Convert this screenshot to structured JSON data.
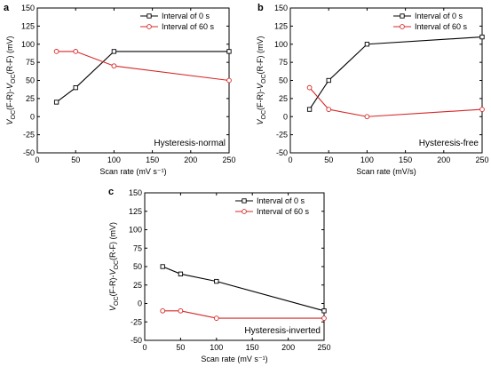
{
  "chart_data": [
    {
      "panel": "a",
      "type": "line",
      "xlabel": "Scan rate (mV s⁻¹)",
      "ylabel": "V_OC(F-R)-V_OC(R-F) (mV)",
      "annotation": "Hysteresis-normal",
      "xlim": [
        0,
        250
      ],
      "ylim": [
        -50,
        150
      ],
      "xticks": [
        0,
        50,
        100,
        150,
        200,
        250
      ],
      "yticks": [
        -50,
        -25,
        0,
        25,
        50,
        75,
        100,
        125,
        150
      ],
      "legend_position": "top-right",
      "series": [
        {
          "name": "Interval of 0 s",
          "color": "#000000",
          "marker": "square",
          "x": [
            25,
            50,
            100,
            250
          ],
          "y": [
            20,
            40,
            90,
            90
          ]
        },
        {
          "name": "Interval of 60 s",
          "color": "#d62728",
          "marker": "circle",
          "x": [
            25,
            50,
            100,
            250
          ],
          "y": [
            90,
            90,
            70,
            50
          ]
        }
      ]
    },
    {
      "panel": "b",
      "type": "line",
      "xlabel": "Scan rate (mV/s)",
      "ylabel": "V_OC(F-R)-V_OC(R-F) (mV)",
      "annotation": "Hysteresis-free",
      "xlim": [
        0,
        250
      ],
      "ylim": [
        -50,
        150
      ],
      "xticks": [
        0,
        50,
        100,
        150,
        200,
        250
      ],
      "yticks": [
        -50,
        -25,
        0,
        25,
        50,
        75,
        100,
        125,
        150
      ],
      "legend_position": "top-right",
      "series": [
        {
          "name": "Interval of 0 s",
          "color": "#000000",
          "marker": "square",
          "x": [
            25,
            50,
            100,
            250
          ],
          "y": [
            10,
            50,
            100,
            110
          ]
        },
        {
          "name": "Interval of 60 s",
          "color": "#d62728",
          "marker": "circle",
          "x": [
            25,
            50,
            100,
            250
          ],
          "y": [
            40,
            10,
            0,
            10
          ]
        }
      ]
    },
    {
      "panel": "c",
      "type": "line",
      "xlabel": "Scan rate (mV s⁻¹)",
      "ylabel": "V_OC(F-R)-V_OC(R-F) (mV)",
      "annotation": "Hysteresis-inverted",
      "xlim": [
        0,
        250
      ],
      "ylim": [
        -50,
        150
      ],
      "xticks": [
        0,
        50,
        100,
        150,
        200,
        250
      ],
      "yticks": [
        -50,
        -25,
        0,
        25,
        50,
        75,
        100,
        125,
        150
      ],
      "legend_position": "top-right",
      "series": [
        {
          "name": "Interval of 0 s",
          "color": "#000000",
          "marker": "square",
          "x": [
            25,
            50,
            100,
            250
          ],
          "y": [
            50,
            40,
            30,
            -10
          ]
        },
        {
          "name": "Interval of 60 s",
          "color": "#d62728",
          "marker": "circle",
          "x": [
            25,
            50,
            100,
            250
          ],
          "y": [
            -10,
            -10,
            -20,
            -20
          ]
        }
      ]
    }
  ]
}
